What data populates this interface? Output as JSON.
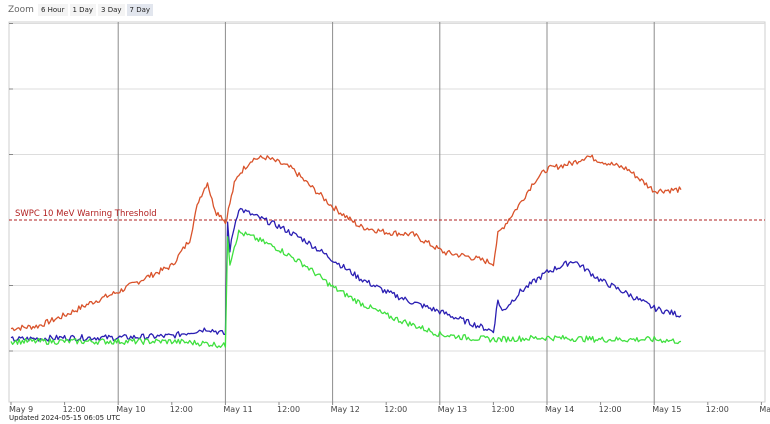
{
  "zoom": {
    "label": "Zoom",
    "buttons": [
      "6 Hour",
      "1 Day",
      "3 Day",
      "7 Day"
    ],
    "active": "7 Day"
  },
  "updated_text": "Updated 2024-05-15 06:05 UTC",
  "colors": {
    "red": "#d9532b",
    "blue": "#2b1fb3",
    "green": "#3fe03f",
    "threshold": "#b22222",
    "grid": "#8c8c8c",
    "hgrid": "#dddddd"
  },
  "chart_data": {
    "type": "line",
    "title": "",
    "xlabel": "",
    "ylabel": "",
    "y_scale": "log",
    "x_range": [
      "2024-05-09 00:00",
      "2024-05-16 00:00"
    ],
    "x_tick_labels": [
      "May 9",
      "12:00",
      "May 10",
      "12:00",
      "May 11",
      "12:00",
      "May 12",
      "12:00",
      "May 13",
      "12:00",
      "May 14",
      "12:00",
      "May 15",
      "12:00",
      "May"
    ],
    "threshold": {
      "label": "SWPC 10 MeV Warning Threshold",
      "value": 10
    },
    "series": [
      {
        "color": "red",
        "x": [
          "2024-05-09 00:00",
          "2024-05-09 06:00",
          "2024-05-09 12:00",
          "2024-05-09 18:00",
          "2024-05-10 00:00",
          "2024-05-10 06:00",
          "2024-05-10 12:00",
          "2024-05-10 16:00",
          "2024-05-10 18:00",
          "2024-05-10 20:00",
          "2024-05-10 21:00",
          "2024-05-10 22:00",
          "2024-05-10 23:00",
          "2024-05-11 00:00",
          "2024-05-11 01:00",
          "2024-05-11 02:00",
          "2024-05-11 03:00",
          "2024-05-11 06:00",
          "2024-05-11 09:00",
          "2024-05-11 12:00",
          "2024-05-11 15:00",
          "2024-05-11 18:00",
          "2024-05-11 21:00",
          "2024-05-12 00:00",
          "2024-05-12 06:00",
          "2024-05-12 12:00",
          "2024-05-12 18:00",
          "2024-05-13 00:00",
          "2024-05-13 01:00",
          "2024-05-13 06:00",
          "2024-05-13 12:00",
          "2024-05-13 13:00",
          "2024-05-13 14:00",
          "2024-05-13 18:00",
          "2024-05-13 21:00",
          "2024-05-14 00:00",
          "2024-05-14 06:00",
          "2024-05-14 09:00",
          "2024-05-14 12:00",
          "2024-05-14 18:00",
          "2024-05-15 00:00",
          "2024-05-15 06:00"
        ],
        "y": [
          0.22,
          0.24,
          0.35,
          0.55,
          0.8,
          1.3,
          2.0,
          5.0,
          20.0,
          38.0,
          20.0,
          13.0,
          12.0,
          9.0,
          18.0,
          35.0,
          50.0,
          85.0,
          90.0,
          75.0,
          60.0,
          38.0,
          25.0,
          16.0,
          8.0,
          6.5,
          6.0,
          3.5,
          3.2,
          2.8,
          2.2,
          6.0,
          7.5,
          18.0,
          38.0,
          60.0,
          75.0,
          95.0,
          80.0,
          60.0,
          28.0,
          29.0
        ]
      },
      {
        "color": "blue",
        "x": [
          "2024-05-09 00:00",
          "2024-05-09 12:00",
          "2024-05-10 00:00",
          "2024-05-10 12:00",
          "2024-05-10 20:00",
          "2024-05-11 00:00",
          "2024-05-11 00:30",
          "2024-05-11 01:00",
          "2024-05-11 02:00",
          "2024-05-11 03:00",
          "2024-05-11 06:00",
          "2024-05-11 12:00",
          "2024-05-11 18:00",
          "2024-05-12 00:00",
          "2024-05-12 06:00",
          "2024-05-12 12:00",
          "2024-05-12 18:00",
          "2024-05-13 00:00",
          "2024-05-13 06:00",
          "2024-05-13 12:00",
          "2024-05-13 13:00",
          "2024-05-13 14:00",
          "2024-05-13 18:00",
          "2024-05-14 00:00",
          "2024-05-14 06:00",
          "2024-05-14 12:00",
          "2024-05-14 18:00",
          "2024-05-15 00:00",
          "2024-05-15 06:00"
        ],
        "y": [
          0.15,
          0.16,
          0.16,
          0.17,
          0.22,
          0.18,
          9.0,
          3.5,
          8.0,
          15.0,
          12.0,
          8.0,
          4.8,
          2.5,
          1.3,
          0.8,
          0.55,
          0.4,
          0.28,
          0.2,
          0.6,
          0.4,
          0.8,
          1.6,
          2.4,
          1.2,
          0.75,
          0.45,
          0.35
        ]
      },
      {
        "color": "green",
        "x": [
          "2024-05-09 00:00",
          "2024-05-09 12:00",
          "2024-05-10 00:00",
          "2024-05-10 12:00",
          "2024-05-10 20:00",
          "2024-05-11 00:00",
          "2024-05-11 00:30",
          "2024-05-11 01:00",
          "2024-05-11 02:00",
          "2024-05-11 03:00",
          "2024-05-11 06:00",
          "2024-05-11 12:00",
          "2024-05-11 18:00",
          "2024-05-12 00:00",
          "2024-05-12 06:00",
          "2024-05-12 12:00",
          "2024-05-12 18:00",
          "2024-05-13 00:00",
          "2024-05-13 06:00",
          "2024-05-13 12:00",
          "2024-05-14 00:00",
          "2024-05-14 12:00",
          "2024-05-15 00:00",
          "2024-05-15 06:00"
        ],
        "y": [
          0.14,
          0.14,
          0.14,
          0.14,
          0.13,
          0.12,
          6.0,
          2.2,
          4.0,
          6.5,
          5.5,
          3.6,
          2.0,
          0.95,
          0.55,
          0.35,
          0.25,
          0.18,
          0.16,
          0.15,
          0.16,
          0.15,
          0.15,
          0.14
        ]
      }
    ]
  }
}
